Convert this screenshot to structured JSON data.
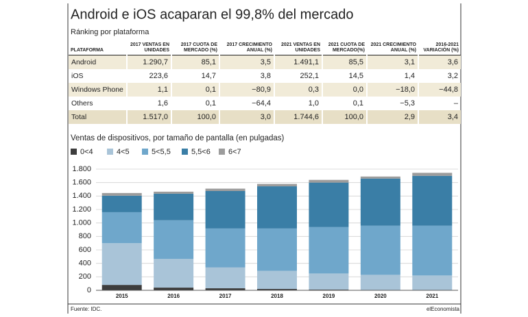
{
  "header": {
    "title": "Android e iOS acaparan el 99,8% del mercado"
  },
  "table": {
    "title": "Ránking por plataforma",
    "columns": [
      "PLATAFORMA",
      "2017 VENTAS EN UNIDADES",
      "2017 CUOTA DE MERCADO (%)",
      "2017 CRECIMIENTO ANUAL (%)",
      "2021 VENTAS EN UNIDADES",
      "2021 CUOTA DE MERCADO(%)",
      "2021 CRECIMIENTO ANUAL (%)",
      "2016-2021 VARIACIÓN (%)"
    ],
    "rows": [
      [
        "Android",
        "1.290,7",
        "85,1",
        "3,5",
        "1.491,1",
        "85,5",
        "3,1",
        "3,6"
      ],
      [
        "iOS",
        "223,6",
        "14,7",
        "3,8",
        "252,1",
        "14,5",
        "1,4",
        "3,2"
      ],
      [
        "Windows Phone",
        "1,1",
        "0,1",
        "−80,9",
        "0,3",
        "0,0",
        "−18,0",
        "−44,8"
      ],
      [
        "Others",
        "1,6",
        "0,1",
        "−64,4",
        "1,0",
        "0,1",
        "−5,3",
        "–"
      ],
      [
        "Total",
        "1.517,0",
        "100,0",
        "3,0",
        "1.744,6",
        "100,0",
        "2,9",
        "3,4"
      ]
    ]
  },
  "chart_data": {
    "type": "stacked_bar",
    "title": "Ventas de dispositivos, por tamaño de pantalla (en pulgadas)",
    "categories": [
      "2015",
      "2016",
      "2017",
      "2018",
      "2019",
      "2020",
      "2021"
    ],
    "series": [
      {
        "name": "0<4",
        "color": "#3d3d3d",
        "values": [
          80,
          40,
          30,
          20,
          10,
          5,
          5
        ]
      },
      {
        "name": "4<5",
        "color": "#a9c4d8",
        "values": [
          620,
          425,
          310,
          270,
          240,
          225,
          215
        ]
      },
      {
        "name": "5<5,5",
        "color": "#6fa7cb",
        "values": [
          460,
          575,
          580,
          630,
          690,
          730,
          740
        ]
      },
      {
        "name": "5,5<6",
        "color": "#3a7ea6",
        "values": [
          245,
          395,
          555,
          625,
          660,
          700,
          740
        ]
      },
      {
        "name": "6<7",
        "color": "#9c9c9c",
        "values": [
          40,
          30,
          35,
          35,
          40,
          30,
          45
        ]
      }
    ],
    "ylim": [
      0,
      1800
    ],
    "yticks": [
      0,
      200,
      400,
      600,
      800,
      {
        "value": 1000,
        "label": "1.000"
      },
      {
        "value": 1200,
        "label": "1.200"
      },
      {
        "value": 1400,
        "label": "1.400"
      },
      {
        "value": 1600,
        "label": "1.600"
      },
      {
        "value": 1800,
        "label": "1.800"
      }
    ],
    "grid": true
  },
  "footer": {
    "source": "Fuente: IDC.",
    "brand": "elEconomista"
  }
}
